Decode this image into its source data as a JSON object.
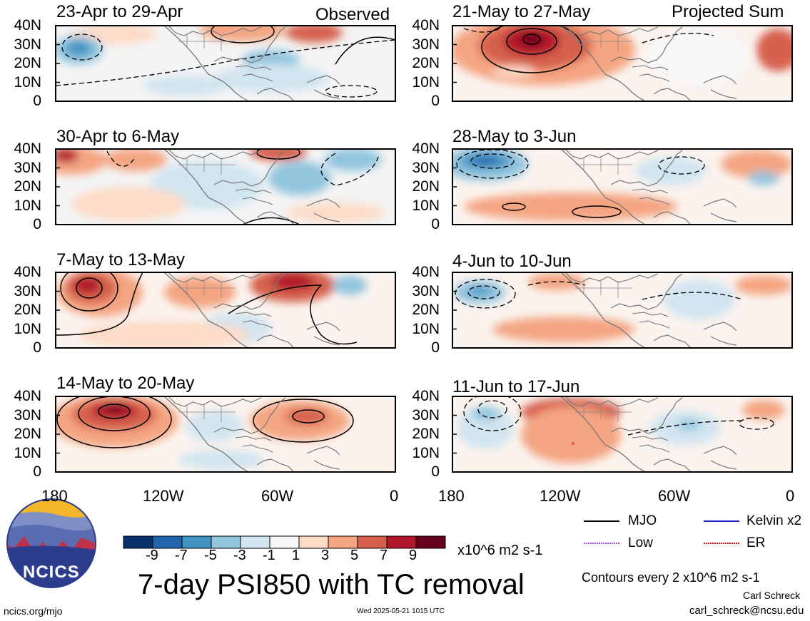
{
  "header": {
    "left_label": "Observed",
    "right_label": "Projected Sum"
  },
  "panels": [
    {
      "title": "23-Apr to 29-Apr",
      "column": "observed"
    },
    {
      "title": "30-Apr to 6-May",
      "column": "observed"
    },
    {
      "title": "7-May to 13-May",
      "column": "observed"
    },
    {
      "title": "14-May to 20-May",
      "column": "observed"
    },
    {
      "title": "21-May to 27-May",
      "column": "projected"
    },
    {
      "title": "28-May to 3-Jun",
      "column": "projected"
    },
    {
      "title": "4-Jun to 10-Jun",
      "column": "projected"
    },
    {
      "title": "11-Jun to 17-Jun",
      "column": "projected"
    }
  ],
  "y_ticks": [
    "40N",
    "30N",
    "20N",
    "10N",
    "0"
  ],
  "x_ticks": [
    "180",
    "120W",
    "60W",
    "0"
  ],
  "colorbar": {
    "colors": [
      "#08306b",
      "#2166ac",
      "#4393c3",
      "#92c5de",
      "#d1e5f0",
      "#f7f7f7",
      "#fddbc7",
      "#f4a582",
      "#d6604d",
      "#b2182b",
      "#67001f"
    ],
    "ticks": [
      "-9",
      "-7",
      "-5",
      "-3",
      "-1",
      "1",
      "3",
      "5",
      "7",
      "9"
    ],
    "units": "x10^6 m2 s-1"
  },
  "legend": {
    "items": [
      {
        "label": "MJO",
        "color": "#000000"
      },
      {
        "label": "Kelvin x2",
        "color": "#1f1fd0"
      },
      {
        "label": "Low",
        "color": "#a050e0"
      },
      {
        "label": "ER",
        "color": "#e01010"
      }
    ],
    "contour_note": "Contours every 2 x10^6 m2 s-1"
  },
  "main_title": "7-day PSI850 with TC removal",
  "logo_text": "NCICS",
  "footer": {
    "left": "ncics.org/mjo",
    "timestamp": "Wed 2025-05-21 1015 UTC",
    "author": "Carl Schreck",
    "email": "carl_schreck@ncsu.edu"
  }
}
